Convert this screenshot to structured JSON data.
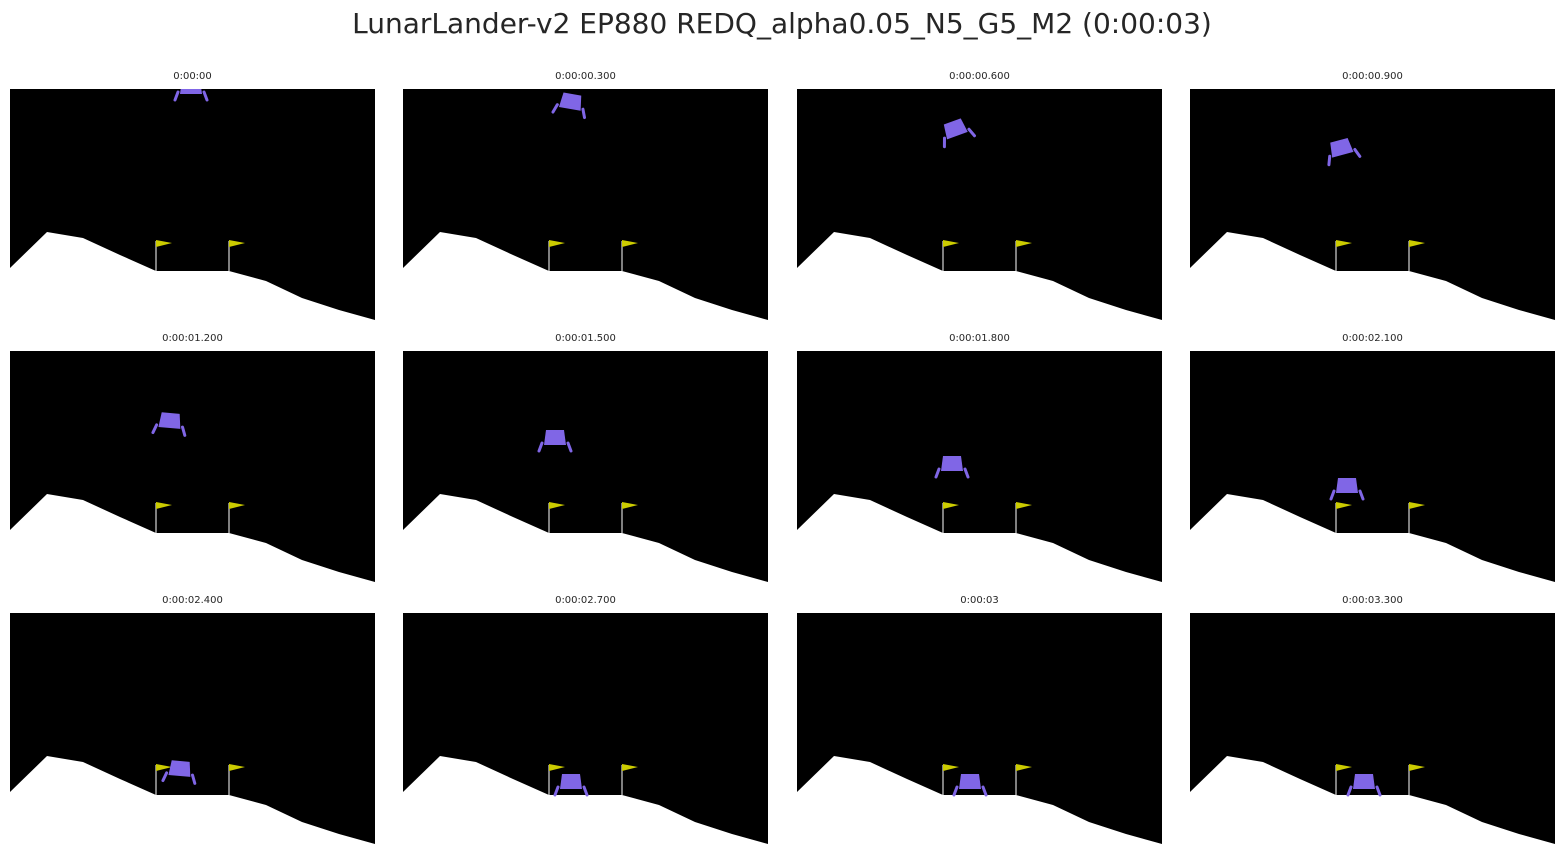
{
  "title": "LunarLander-v2 EP880 REDQ_alpha0.05_N5_G5_M2 (0:00:03)",
  "frames": [
    {
      "label": "0:00:00"
    },
    {
      "label": "0:00:00.300"
    },
    {
      "label": "0:00:00.600"
    },
    {
      "label": "0:00:00.900"
    },
    {
      "label": "0:00:01.200"
    },
    {
      "label": "0:00:01.500"
    },
    {
      "label": "0:00:01.800"
    },
    {
      "label": "0:00:02.100"
    },
    {
      "label": "0:00:02.400"
    },
    {
      "label": "0:00:02.700"
    },
    {
      "label": "0:00:03"
    },
    {
      "label": "0:00:03.300"
    }
  ]
}
